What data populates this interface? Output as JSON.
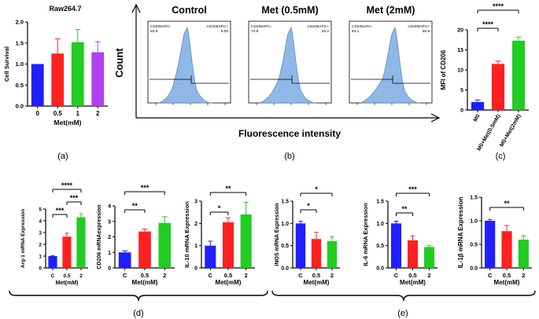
{
  "colors": {
    "blue": "#1f1fff",
    "red": "#ff2020",
    "green": "#22cc22",
    "purple": "#b040f0",
    "hist": "#8fb8e6"
  },
  "chart_data": [
    {
      "id": "a",
      "type": "bar",
      "title": "Raw264.7",
      "ylabel": "Cell Survival",
      "xlabel": "Met(mM)",
      "panel": "(a)",
      "categories": [
        "0",
        "0.5",
        "1",
        "2"
      ],
      "values": [
        1.0,
        1.25,
        1.52,
        1.28
      ],
      "errors": [
        0,
        0.35,
        0.3,
        0.25
      ],
      "ylim": [
        0,
        2.0
      ],
      "yticks": [
        "0.0",
        "0.5",
        "1.0",
        "1.5",
        "2.0"
      ]
    },
    {
      "id": "b",
      "type": "histogram",
      "panel": "(b)",
      "ylabel": "Count",
      "xlabel": "Fluorescence intensity",
      "panels": [
        {
          "title": "Control",
          "neg_label": "CD206APC-",
          "neg_value": "93.9",
          "pos_label": "CD206APC+",
          "pos_value": "6.05"
        },
        {
          "title": "Met (0.5mM)",
          "neg_label": "CD206APC-",
          "neg_value": "74.8",
          "pos_label": "CD206APC+",
          "pos_value": "25.2"
        },
        {
          "title": "Met (2mM)",
          "neg_label": "CD206APC-",
          "neg_value": "63.1",
          "pos_label": "CD206APC+",
          "pos_value": "36.9"
        }
      ]
    },
    {
      "id": "c",
      "type": "bar",
      "panel": "(c)",
      "ylabel": "MFI of CD206",
      "categories": [
        "M0",
        "M0+Met(0.5mM)",
        "M0+Met(2mM)"
      ],
      "values": [
        2.0,
        11.5,
        17.3
      ],
      "errors": [
        0.5,
        0.7,
        0.9
      ],
      "ylim": [
        0,
        20
      ],
      "yticks": [
        "0",
        "5",
        "10",
        "15",
        "20"
      ],
      "sig": [
        "****",
        "****"
      ]
    },
    {
      "id": "d1",
      "type": "bar",
      "ylabel": "Arg-1 mRNA Expression",
      "xlabel": "Met(mM)",
      "categories": [
        "C",
        "0.5",
        "2"
      ],
      "values": [
        1.0,
        2.65,
        4.3
      ],
      "errors": [
        0.05,
        0.3,
        0.3
      ],
      "ylim": [
        0,
        5
      ],
      "yticks": [
        "0",
        "1",
        "2",
        "3",
        "4",
        "5"
      ],
      "sig": [
        "***",
        "****",
        "***"
      ]
    },
    {
      "id": "d2",
      "type": "bar",
      "ylabel": "CD206 mRNAexpression",
      "xlabel": "Met(mM)",
      "categories": [
        "C",
        "0.5",
        "2"
      ],
      "values": [
        1.0,
        2.35,
        2.9
      ],
      "errors": [
        0.1,
        0.15,
        0.4
      ],
      "ylim": [
        0,
        4
      ],
      "yticks": [
        "0",
        "1",
        "2",
        "3",
        "4"
      ],
      "sig": [
        "**",
        "***"
      ]
    },
    {
      "id": "d3",
      "type": "bar",
      "ylabel": "IL-10 mRNA Expression",
      "xlabel": "Met(mM)",
      "categories": [
        "C",
        "0.5",
        "2"
      ],
      "values": [
        1.0,
        2.05,
        2.4
      ],
      "errors": [
        0.2,
        0.2,
        0.55
      ],
      "ylim": [
        0,
        3
      ],
      "yticks": [
        "0",
        "1",
        "2",
        "3"
      ],
      "sig": [
        "*",
        "**"
      ]
    },
    {
      "id": "e1",
      "type": "bar",
      "ylabel": "iNOS mRNA Expression",
      "xlabel": "Met(mM)",
      "categories": [
        "C",
        "0.5",
        "2"
      ],
      "values": [
        1.0,
        0.65,
        0.6
      ],
      "errors": [
        0.05,
        0.15,
        0.1
      ],
      "ylim": [
        0,
        1.5
      ],
      "yticks": [
        "0.0",
        "0.5",
        "1.0",
        "1.5"
      ],
      "sig": [
        "*",
        "*"
      ]
    },
    {
      "id": "e2",
      "type": "bar",
      "ylabel": "IL-6 mRNA Expression",
      "xlabel": "Met(mM)",
      "categories": [
        "C",
        "0.5",
        "2"
      ],
      "values": [
        1.0,
        0.62,
        0.47
      ],
      "errors": [
        0.05,
        0.1,
        0.03
      ],
      "ylim": [
        0,
        1.5
      ],
      "yticks": [
        "0.0",
        "0.5",
        "1.0",
        "1.5"
      ],
      "sig": [
        "**",
        "***"
      ]
    },
    {
      "id": "e3",
      "type": "bar",
      "ylabel": "IL-1β mRNA Expression",
      "xlabel": "Met(mM)",
      "categories": [
        "C",
        "0.5",
        "2"
      ],
      "values": [
        1.0,
        0.78,
        0.6
      ],
      "errors": [
        0.03,
        0.12,
        0.08
      ],
      "ylim": [
        0,
        1.5
      ],
      "yticks": [
        "0.0",
        "0.5",
        "1.0",
        "1.5"
      ],
      "sig": [
        "**"
      ]
    }
  ],
  "panel_labels": {
    "d": "(d)",
    "e": "(e)"
  }
}
